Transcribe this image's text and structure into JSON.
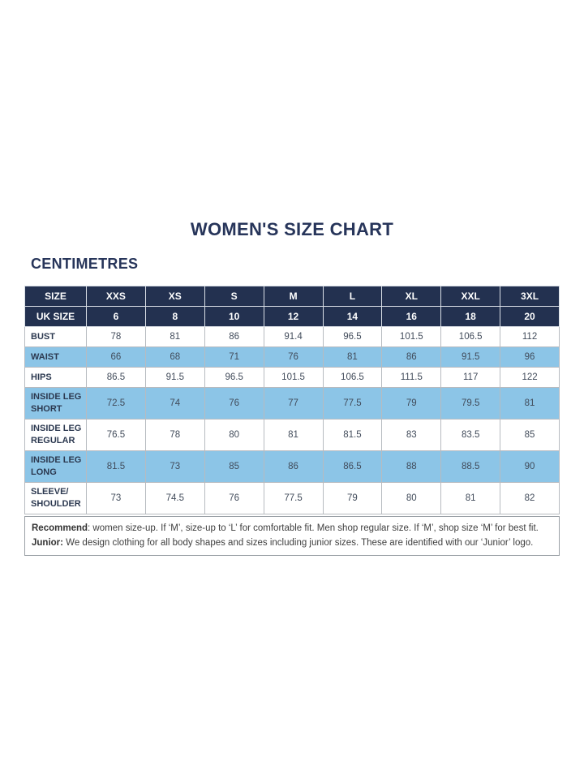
{
  "page": {
    "title": "WOMEN'S SIZE CHART",
    "units_label": "CENTIMETRES"
  },
  "colors": {
    "navy": "#233150",
    "light_blue": "#8cc5e7",
    "title_text": "#27355a",
    "body_text": "#414b5a",
    "label_text": "#2c3950",
    "border": "#b7bbc0",
    "outer_border": "#8f949a",
    "footer_text": "#3e3e3e"
  },
  "table": {
    "header_rows": [
      {
        "label": "SIZE",
        "values": [
          "XXS",
          "XS",
          "S",
          "M",
          "L",
          "XL",
          "XXL",
          "3XL"
        ]
      },
      {
        "label": "UK SIZE",
        "values": [
          "6",
          "8",
          "10",
          "12",
          "14",
          "16",
          "18",
          "20"
        ]
      }
    ],
    "rows": [
      {
        "label": "BUST",
        "values": [
          "78",
          "81",
          "86",
          "91.4",
          "96.5",
          "101.5",
          "106.5",
          "112"
        ]
      },
      {
        "label": "WAIST",
        "values": [
          "66",
          "68",
          "71",
          "76",
          "81",
          "86",
          "91.5",
          "96"
        ]
      },
      {
        "label": "HIPS",
        "values": [
          "86.5",
          "91.5",
          "96.5",
          "101.5",
          "106.5",
          "111.5",
          "117",
          "122"
        ]
      },
      {
        "label": "INSIDE LEG SHORT",
        "values": [
          "72.5",
          "74",
          "76",
          "77",
          "77.5",
          "79",
          "79.5",
          "81"
        ]
      },
      {
        "label": "INSIDE LEG REGULAR",
        "values": [
          "76.5",
          "78",
          "80",
          "81",
          "81.5",
          "83",
          "83.5",
          "85"
        ]
      },
      {
        "label": "INSIDE LEG LONG",
        "values": [
          "81.5",
          "73",
          "85",
          "86",
          "86.5",
          "88",
          "88.5",
          "90"
        ]
      },
      {
        "label": "SLEEVE/ SHOULDER",
        "values": [
          "73",
          "74.5",
          "76",
          "77.5",
          "79",
          "80",
          "81",
          "82"
        ]
      }
    ]
  },
  "footer": {
    "line1_bold": "Recommend",
    "line1_rest": ": women size-up. If ‘M’, size-up to ‘L’ for comfortable fit. Men shop regular size. If ‘M’, shop size ‘M’ for best fit.",
    "line2_bold": "Junior:",
    "line2_rest": " We design clothing for all body shapes and sizes including junior sizes. These are identified with our ‘Junior’ logo."
  }
}
